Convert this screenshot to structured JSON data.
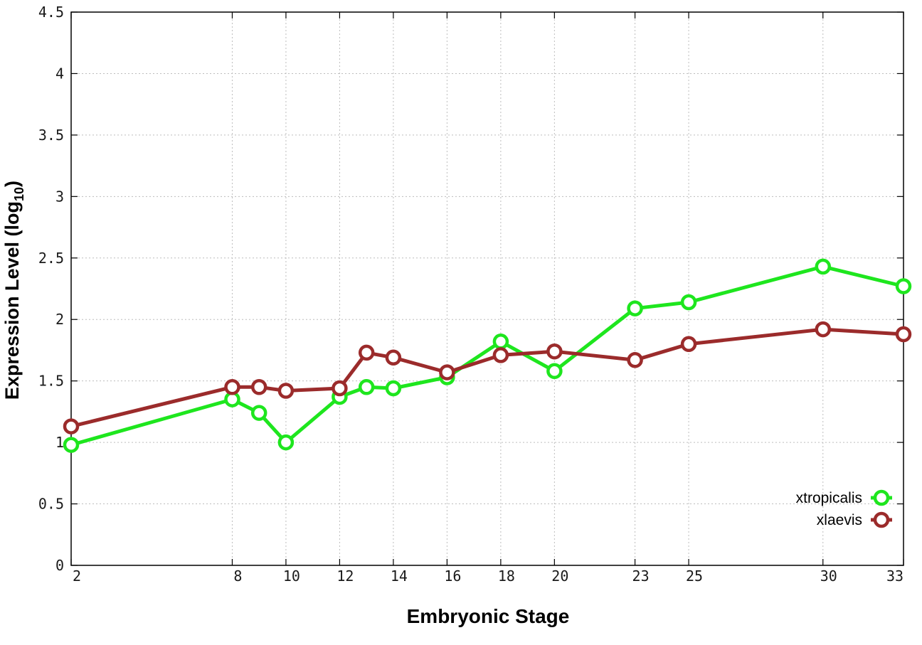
{
  "chart_data": {
    "type": "line",
    "xlabel": "Embryonic Stage",
    "ylabel_main": "Expression Level (log",
    "ylabel_sub": "10",
    "ylabel_close": ")",
    "x_ticks": [
      2,
      8,
      10,
      12,
      14,
      16,
      18,
      20,
      23,
      25,
      30,
      33
    ],
    "y_ticks": [
      "0",
      "0.5",
      "1",
      "1.5",
      "2",
      "2.5",
      "3",
      "3.5",
      "4",
      "4.5"
    ],
    "xlim": [
      2,
      33
    ],
    "ylim": [
      0,
      4.5
    ],
    "grid": true,
    "legend_position": "bottom-right",
    "series": [
      {
        "name": "xtropicalis",
        "color": "#1ee61e",
        "x": [
          2,
          8,
          9,
          10,
          12,
          13,
          14,
          16,
          18,
          20,
          23,
          25,
          30,
          33
        ],
        "y": [
          0.98,
          1.35,
          1.24,
          1.0,
          1.37,
          1.45,
          1.44,
          1.53,
          1.82,
          1.58,
          2.09,
          2.14,
          2.43,
          2.27
        ]
      },
      {
        "name": "xlaevis",
        "color": "#9b2b2b",
        "x": [
          2,
          8,
          9,
          10,
          12,
          13,
          14,
          16,
          18,
          20,
          23,
          25,
          30,
          33
        ],
        "y": [
          1.13,
          1.45,
          1.45,
          1.42,
          1.44,
          1.73,
          1.69,
          1.57,
          1.71,
          1.74,
          1.67,
          1.8,
          1.92,
          1.88
        ]
      }
    ]
  }
}
